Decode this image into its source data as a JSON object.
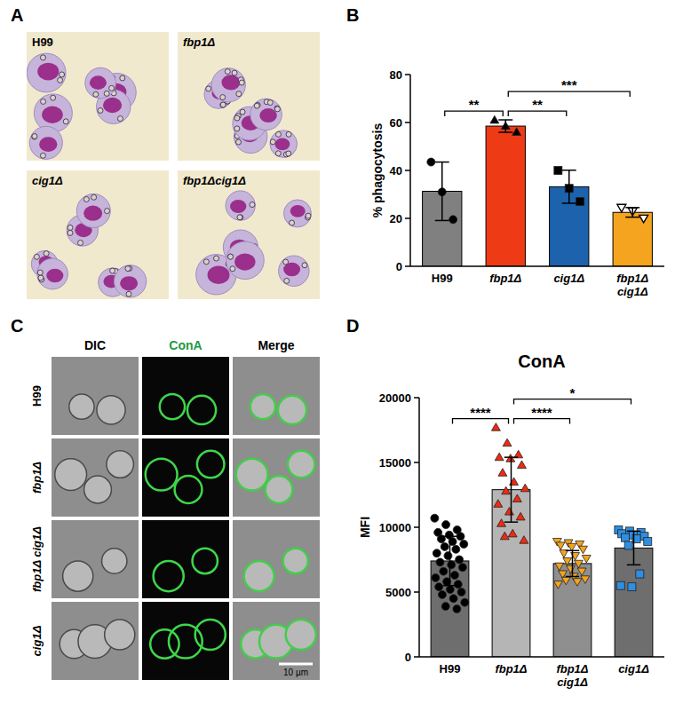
{
  "panel_letters": [
    "A",
    "B",
    "C",
    "D"
  ],
  "micrographs_a": {
    "labels": [
      "H99",
      "fbp1Δ",
      "cig1Δ",
      "fbp1Δcig1Δ"
    ]
  },
  "micrographs_c": {
    "columns": [
      "DIC",
      "ConA",
      "Merge"
    ],
    "rows": [
      "H99",
      "fbp1Δ",
      "fbp1Δ cig1Δ",
      "cig1Δ"
    ],
    "scale_bar": "10 µm"
  },
  "chart_data": [
    {
      "type": "bar",
      "y_label": "% phagocytosis",
      "categories": [
        "H99",
        "fbp1Δ",
        "cig1Δ",
        "fbp1Δ cig1Δ"
      ],
      "values": [
        31.3,
        58.5,
        33.2,
        22.5
      ],
      "errors": [
        12.2,
        2.6,
        6.9,
        2.0
      ],
      "colors": [
        "#808080",
        "#ef3a16",
        "#1d62ad",
        "#f4a41e"
      ],
      "points": [
        [
          43.5,
          31,
          19.5
        ],
        [
          61,
          58.5,
          56
        ],
        [
          40,
          32.5,
          27
        ],
        [
          24.5,
          23,
          20
        ]
      ],
      "point_colors": [
        "#000000",
        "#000000",
        "#000000",
        "#000000"
      ],
      "markers": [
        "circle",
        "triangle",
        "square",
        "triangle-down-open"
      ],
      "ylim": [
        0,
        80
      ],
      "yticks": [
        0,
        20,
        40,
        60,
        80
      ],
      "annotations": [
        {
          "text": "**",
          "between": [
            "H99",
            "fbp1Δ"
          ]
        },
        {
          "text": "**",
          "between": [
            "fbp1Δ",
            "cig1Δ"
          ]
        },
        {
          "text": "***",
          "between": [
            "fbp1Δ",
            "fbp1Δ cig1Δ"
          ]
        }
      ]
    },
    {
      "type": "bar",
      "title": "ConA",
      "y_label": "MFI",
      "categories": [
        "H99",
        "fbp1Δ",
        "fbp1Δ cig1Δ",
        "cig1Δ"
      ],
      "values": [
        7400,
        12900,
        7200,
        8400
      ],
      "errors": [
        1900,
        2500,
        1000,
        1300
      ],
      "colors": [
        "#6e6e6e",
        "#b5b5b5",
        "#8f8f8f",
        "#6e6e6e"
      ],
      "points": [
        [
          10700,
          10200,
          9800,
          9600,
          9400,
          9300,
          9100,
          8900,
          8700,
          8500,
          8300,
          8000,
          7800,
          7500,
          7300,
          7100,
          6900,
          6600,
          6300,
          6100,
          5800,
          5600,
          5400,
          5200,
          5000,
          4800,
          4500,
          4200,
          3900,
          3700
        ],
        [
          17700,
          16500,
          15600,
          15400,
          15300,
          14800,
          14200,
          13500,
          13000,
          12800,
          12200,
          11800,
          11200,
          10800,
          10300,
          9500,
          9000,
          9300
        ],
        [
          8900,
          8800,
          8700,
          8600,
          8500,
          8300,
          8000,
          7800,
          7600,
          7400,
          7200,
          7000,
          6800,
          6600,
          6400,
          6200,
          6000,
          5900,
          5800,
          5600
        ],
        [
          9800,
          9700,
          9600,
          9500,
          9400,
          9300,
          9200,
          9100,
          8900,
          8600,
          6400,
          5500,
          5400
        ]
      ],
      "point_colors": [
        "#000000",
        "#ee2a10",
        "#f4a41e",
        "#2e8fe0"
      ],
      "markers": [
        "circle",
        "triangle",
        "triangle-down",
        "square"
      ],
      "ylim": [
        0,
        20000
      ],
      "yticks": [
        0,
        5000,
        10000,
        15000,
        20000
      ],
      "annotations": [
        {
          "text": "****",
          "between": [
            "H99",
            "fbp1Δ"
          ]
        },
        {
          "text": "****",
          "between": [
            "fbp1Δ",
            "fbp1Δ cig1Δ"
          ]
        },
        {
          "text": "*",
          "between": [
            "fbp1Δ",
            "cig1Δ"
          ]
        }
      ]
    }
  ]
}
